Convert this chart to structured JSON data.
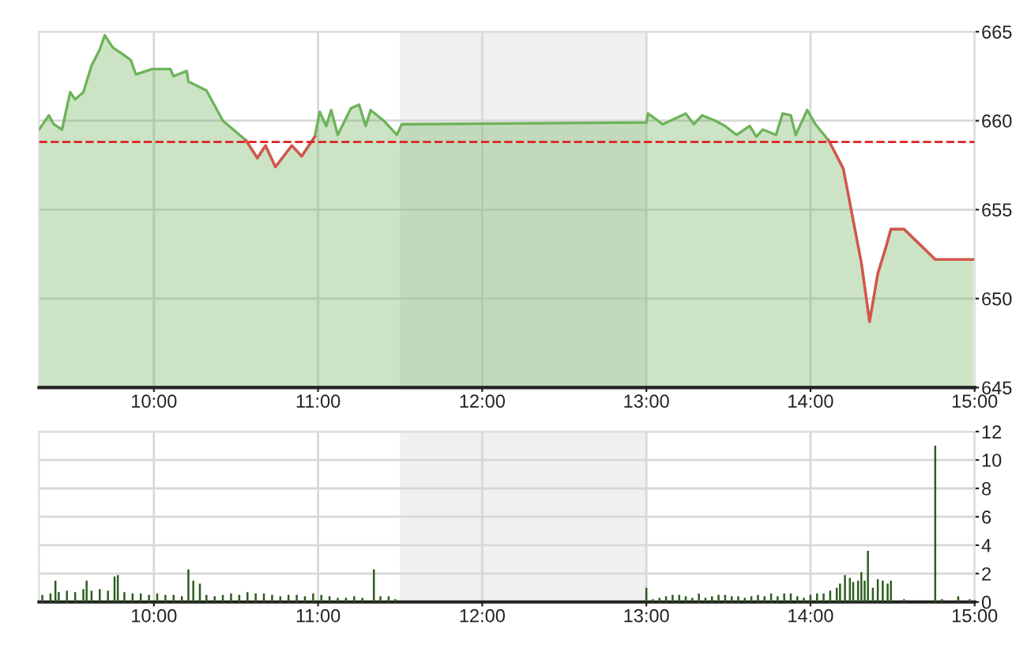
{
  "chart_data": [
    {
      "type": "area",
      "xlim": [
        9.3,
        15
      ],
      "ylim": [
        645,
        665
      ],
      "xticks": [
        {
          "value": 10,
          "label": "10:00"
        },
        {
          "value": 11,
          "label": "11:00"
        },
        {
          "value": 12,
          "label": "12:00"
        },
        {
          "value": 13,
          "label": "13:00"
        },
        {
          "value": 14,
          "label": "14:00"
        },
        {
          "value": 15,
          "label": "15:00"
        }
      ],
      "yticks": [
        645,
        650,
        655,
        660,
        665
      ],
      "grid": true,
      "bands": [
        {
          "axis": "x",
          "from": 11.5,
          "to": 13.0,
          "color": "#f0f0f0"
        }
      ],
      "ref_lines": [
        {
          "axis": "y",
          "value": 658.8,
          "color": "#e02020",
          "line_style": "dashed"
        }
      ],
      "series": [
        {
          "color": "#6db35a",
          "x": [
            9.3,
            9.36,
            9.39,
            9.44,
            9.49,
            9.52,
            9.57,
            9.62,
            9.67,
            9.7,
            9.75,
            9.8,
            9.86,
            9.89,
            9.99,
            10.1,
            10.12,
            10.2,
            10.21,
            10.32,
            10.42,
            10.56,
            10.63,
            10.68,
            10.74,
            10.84,
            10.9,
            10.98,
            11.01,
            11.05,
            11.08,
            11.12,
            11.2,
            11.25,
            11.29,
            11.32,
            11.4,
            11.48,
            11.51,
            13.0,
            13.01,
            13.1,
            13.24,
            13.29,
            13.34,
            13.42,
            13.48,
            13.55,
            13.63,
            13.67,
            13.71,
            13.79,
            13.83,
            13.88,
            13.91,
            13.98,
            14.03,
            14.11,
            14.15,
            14.2,
            14.25,
            14.31,
            14.36,
            14.41,
            14.46,
            14.49,
            14.57,
            14.76,
            14.99
          ],
          "values": [
            659.5,
            660.3,
            659.8,
            659.5,
            661.6,
            661.2,
            661.6,
            663.1,
            664.0,
            664.8,
            664.1,
            663.8,
            663.4,
            662.6,
            662.9,
            662.9,
            662.5,
            662.8,
            662.2,
            661.7,
            660.0,
            658.9,
            657.9,
            658.6,
            657.4,
            658.6,
            658.0,
            659.1,
            660.5,
            659.7,
            660.6,
            659.2,
            660.7,
            660.9,
            659.7,
            660.6,
            660.0,
            659.2,
            659.8,
            659.9,
            660.4,
            659.8,
            660.4,
            659.8,
            660.3,
            660.0,
            659.7,
            659.2,
            659.7,
            659.1,
            659.5,
            659.2,
            660.4,
            660.3,
            659.2,
            660.6,
            659.8,
            658.9,
            658.2,
            657.3,
            654.9,
            652.0,
            648.7,
            651.4,
            652.9,
            653.9,
            653.9,
            652.2,
            652.2
          ]
        },
        {
          "type": "line",
          "color": "#d9534f",
          "x": [
            14.11,
            14.15,
            14.2,
            14.25,
            14.31,
            14.36,
            14.41,
            14.46,
            14.49,
            14.57,
            14.76,
            14.99
          ],
          "values": [
            658.9,
            658.2,
            657.3,
            654.9,
            652.0,
            648.7,
            651.4,
            652.9,
            653.9,
            653.9,
            652.2,
            652.2
          ]
        },
        {
          "type": "line",
          "color": "#d9534f",
          "x": [
            10.56,
            10.63,
            10.68,
            10.74,
            10.84,
            10.9,
            10.98
          ],
          "values": [
            658.9,
            657.9,
            658.6,
            657.4,
            658.6,
            658.0,
            659.1
          ]
        }
      ]
    },
    {
      "type": "bar",
      "xlim": [
        9.3,
        15
      ],
      "ylim": [
        0,
        12
      ],
      "xticks": [
        {
          "value": 10,
          "label": "10:00"
        },
        {
          "value": 11,
          "label": "11:00"
        },
        {
          "value": 12,
          "label": "12:00"
        },
        {
          "value": 13,
          "label": "13:00"
        },
        {
          "value": 14,
          "label": "14:00"
        },
        {
          "value": 15,
          "label": "15:00"
        }
      ],
      "yticks": [
        0,
        2,
        4,
        6,
        8,
        10,
        12
      ],
      "grid": true,
      "bands": [
        {
          "axis": "x",
          "from": 11.5,
          "to": 13.0,
          "color": "#f0f0f0"
        }
      ],
      "series": [
        {
          "color": "#2d5e1e",
          "x": [
            9.32,
            9.37,
            9.4,
            9.42,
            9.47,
            9.52,
            9.57,
            9.59,
            9.62,
            9.67,
            9.72,
            9.76,
            9.78,
            9.82,
            9.87,
            9.92,
            9.97,
            10.02,
            10.07,
            10.12,
            10.17,
            10.21,
            10.24,
            10.28,
            10.32,
            10.37,
            10.42,
            10.47,
            10.52,
            10.57,
            10.62,
            10.67,
            10.72,
            10.77,
            10.82,
            10.87,
            10.92,
            10.97,
            11.02,
            11.07,
            11.12,
            11.17,
            11.22,
            11.27,
            11.34,
            11.38,
            11.43,
            11.47,
            13.0,
            13.04,
            13.08,
            13.12,
            13.16,
            13.2,
            13.24,
            13.28,
            13.32,
            13.36,
            13.4,
            13.44,
            13.48,
            13.52,
            13.56,
            13.6,
            13.64,
            13.68,
            13.72,
            13.76,
            13.8,
            13.84,
            13.88,
            13.92,
            13.96,
            14.0,
            14.04,
            14.08,
            14.12,
            14.16,
            14.18,
            14.21,
            14.24,
            14.26,
            14.29,
            14.31,
            14.33,
            14.35,
            14.38,
            14.41,
            14.44,
            14.47,
            14.49,
            14.57,
            14.66,
            14.76,
            14.8,
            14.9,
            14.97
          ],
          "values": [
            0.5,
            0.6,
            1.5,
            0.7,
            0.8,
            0.7,
            0.9,
            1.5,
            0.8,
            0.9,
            0.8,
            1.8,
            1.9,
            0.7,
            0.6,
            0.6,
            0.5,
            0.6,
            0.5,
            0.5,
            0.4,
            2.3,
            1.5,
            1.3,
            0.5,
            0.4,
            0.5,
            0.6,
            0.5,
            0.7,
            0.6,
            0.6,
            0.5,
            0.4,
            0.5,
            0.5,
            0.4,
            0.6,
            0.5,
            0.4,
            0.3,
            0.3,
            0.4,
            0.3,
            2.3,
            0.4,
            0.4,
            0.2,
            1.0,
            0.2,
            0.3,
            0.4,
            0.5,
            0.5,
            0.4,
            0.3,
            0.6,
            0.3,
            0.4,
            0.5,
            0.5,
            0.4,
            0.4,
            0.3,
            0.4,
            0.5,
            0.4,
            0.6,
            0.4,
            0.6,
            0.6,
            0.4,
            0.3,
            0.5,
            0.6,
            0.6,
            0.8,
            1.0,
            1.3,
            1.9,
            1.7,
            1.4,
            1.5,
            2.1,
            1.5,
            3.6,
            1.0,
            1.6,
            1.5,
            1.3,
            1.5,
            0.2,
            null,
            11.0,
            0.2,
            0.4,
            0.2
          ]
        }
      ]
    }
  ]
}
